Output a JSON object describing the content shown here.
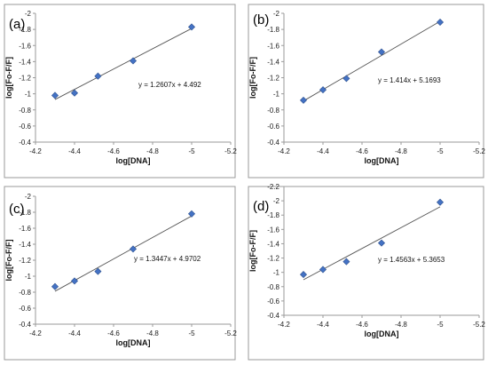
{
  "chart_data": [
    {
      "type": "scatter",
      "panel_label": "(a)",
      "xlabel": "log[DNA]",
      "ylabel": "log[Fo-F/F]",
      "x_ticks": [
        -4.2,
        -4.4,
        -4.6,
        -4.8,
        -5,
        -5.2
      ],
      "x_tick_labels": [
        "-4.2",
        "-4.4",
        "-4.6",
        "-4.8",
        "-5",
        "-5.2"
      ],
      "y_ticks": [
        -2,
        -1.8,
        -1.6,
        -1.4,
        -1.2,
        -1,
        -0.8,
        -0.6,
        -0.4
      ],
      "y_tick_labels": [
        "-2",
        "-1.8",
        "-1.6",
        "-1.4",
        "-1.2",
        "-1",
        "-0.8",
        "-0.6",
        "-0.4"
      ],
      "xlim": [
        -4.2,
        -5.2
      ],
      "ylim": [
        -0.4,
        -2
      ],
      "x": [
        -4.3,
        -4.4,
        -4.52,
        -4.7,
        -5
      ],
      "y": [
        -0.98,
        -1.01,
        -1.22,
        -1.41,
        -1.83
      ],
      "equation": "y = 1.2607x + 4.492",
      "trendline": {
        "slope": 1.2607,
        "intercept": 4.492,
        "x_range": [
          -4.3,
          -5
        ]
      },
      "marker_color": "#4472c4"
    },
    {
      "type": "scatter",
      "panel_label": "(b)",
      "xlabel": "log[DNA]",
      "ylabel": "log[Fo-F/F]",
      "x_ticks": [
        -4.2,
        -4.4,
        -4.6,
        -4.8,
        -5,
        -5.2
      ],
      "x_tick_labels": [
        "-4.2",
        "-4.4",
        "-4.6",
        "-4.8",
        "-5",
        "-5.2"
      ],
      "y_ticks": [
        -2,
        -1.8,
        -1.6,
        -1.4,
        -1.2,
        -1,
        -0.8,
        -0.6,
        -0.4
      ],
      "y_tick_labels": [
        "-2",
        "-1.8",
        "-1.6",
        "-1.4",
        "-1.2",
        "-1",
        "-0.8",
        "-0.6",
        "-0.4"
      ],
      "xlim": [
        -4.2,
        -5.2
      ],
      "ylim": [
        -0.4,
        -2
      ],
      "x": [
        -4.3,
        -4.4,
        -4.52,
        -4.7,
        -5
      ],
      "y": [
        -0.92,
        -1.05,
        -1.19,
        -1.52,
        -1.89
      ],
      "equation": "y = 1.414x + 5.1693",
      "trendline": {
        "slope": 1.414,
        "intercept": 5.1693,
        "x_range": [
          -4.3,
          -5
        ]
      },
      "marker_color": "#4472c4"
    },
    {
      "type": "scatter",
      "panel_label": "(c)",
      "xlabel": "log[DNA]",
      "ylabel": "log[Fo-F/F]",
      "x_ticks": [
        -4.2,
        -4.4,
        -4.6,
        -4.8,
        -5,
        -5.2
      ],
      "x_tick_labels": [
        "-4.2",
        "-4.4",
        "-4.6",
        "-4.8",
        "-5",
        "-5.2"
      ],
      "y_ticks": [
        -2,
        -1.8,
        -1.6,
        -1.4,
        -1.2,
        -1,
        -0.8,
        -0.6,
        -0.4
      ],
      "y_tick_labels": [
        "-2",
        "-1.8",
        "-1.6",
        "-1.4",
        "-1.2",
        "-1",
        "-0.8",
        "-0.6",
        "-0.4"
      ],
      "xlim": [
        -4.2,
        -5.2
      ],
      "ylim": [
        -0.4,
        -2
      ],
      "x": [
        -4.3,
        -4.4,
        -4.52,
        -4.7,
        -5
      ],
      "y": [
        -0.87,
        -0.94,
        -1.06,
        -1.34,
        -1.78
      ],
      "equation": "y = 1.3447x + 4.9702",
      "trendline": {
        "slope": 1.3447,
        "intercept": 4.9702,
        "x_range": [
          -4.3,
          -5
        ]
      },
      "marker_color": "#4472c4"
    },
    {
      "type": "scatter",
      "panel_label": "(d)",
      "xlabel": "log[DNA]",
      "ylabel": "log[Fo-F/F]",
      "x_ticks": [
        -4.2,
        -4.4,
        -4.6,
        -4.8,
        -5,
        -5.2
      ],
      "x_tick_labels": [
        "-4.2",
        "-4.4",
        "-4.6",
        "-4.8",
        "-5",
        "-5.2"
      ],
      "y_ticks": [
        -2.2,
        -2,
        -1.8,
        -1.6,
        -1.4,
        -1.2,
        -1,
        -0.8,
        -0.6,
        -0.4
      ],
      "y_tick_labels": [
        "-2.2",
        "-2",
        "-1.8",
        "-1.6",
        "-1.4",
        "-1.2",
        "-1",
        "-0.8",
        "-0.6",
        "-0.4"
      ],
      "xlim": [
        -4.2,
        -5.2
      ],
      "ylim": [
        -0.4,
        -2.2
      ],
      "x": [
        -4.3,
        -4.4,
        -4.52,
        -4.7,
        -5
      ],
      "y": [
        -0.97,
        -1.04,
        -1.15,
        -1.41,
        -1.98
      ],
      "equation": "y = 1.4563x + 5.3653",
      "trendline": {
        "slope": 1.4563,
        "intercept": 5.3653,
        "x_range": [
          -4.3,
          -5
        ]
      },
      "marker_color": "#4472c4"
    }
  ]
}
